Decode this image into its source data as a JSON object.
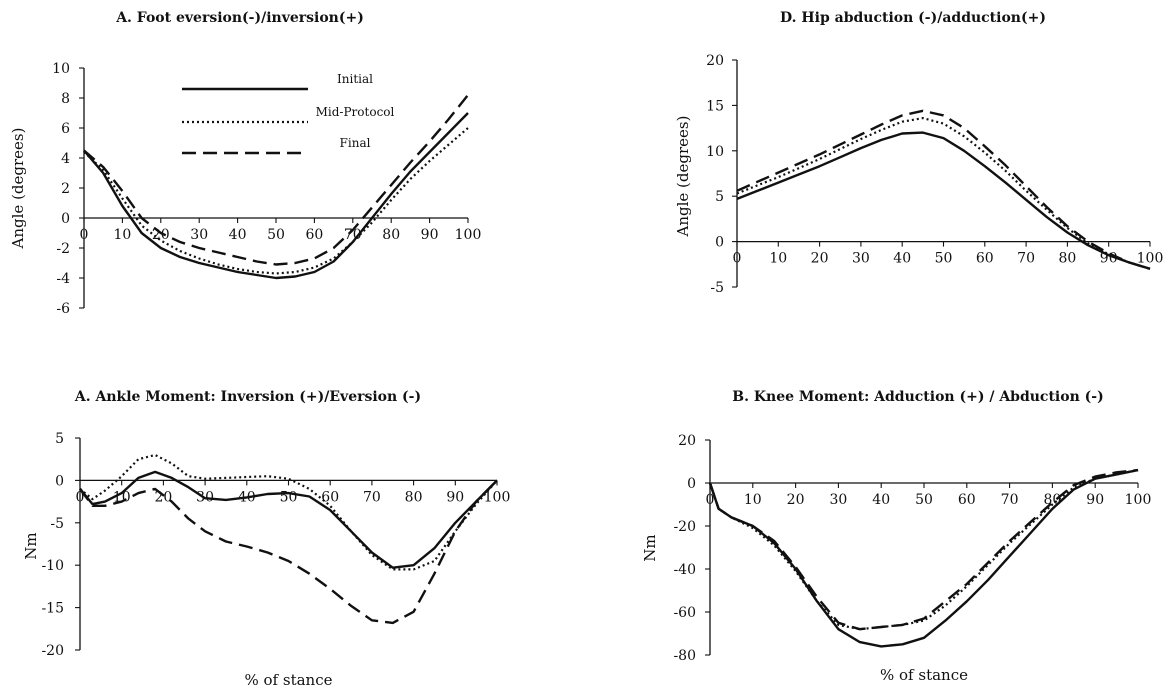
{
  "chart_data": [
    {
      "type": "line",
      "title": "A. Foot eversion(-)/inversion(+)",
      "xlabel": "",
      "ylabel": "Angle (degrees)",
      "xlim": [
        0,
        100
      ],
      "ylim": [
        -6,
        10
      ],
      "xticks": [
        0,
        10,
        20,
        30,
        40,
        50,
        60,
        70,
        80,
        90,
        100
      ],
      "yticks": [
        -6,
        -4,
        -2,
        0,
        2,
        4,
        6,
        8,
        10
      ],
      "legend": {
        "position": "top-center",
        "entries": [
          "Initial",
          "Mid-Protocol",
          "Final"
        ]
      },
      "series": [
        {
          "name": "Initial",
          "style": "solid",
          "x": [
            0,
            5,
            10,
            15,
            20,
            25,
            30,
            35,
            40,
            45,
            50,
            55,
            60,
            65,
            70,
            75,
            80,
            85,
            90,
            95,
            100
          ],
          "y": [
            4.5,
            3.0,
            0.8,
            -1.0,
            -2.0,
            -2.6,
            -3.0,
            -3.3,
            -3.6,
            -3.8,
            -4.0,
            -3.9,
            -3.6,
            -2.9,
            -1.6,
            0.0,
            1.6,
            3.1,
            4.4,
            5.7,
            7.0
          ]
        },
        {
          "name": "Mid-Protocol",
          "style": "dotted",
          "x": [
            0,
            5,
            10,
            15,
            20,
            25,
            30,
            35,
            40,
            45,
            50,
            55,
            60,
            65,
            70,
            75,
            80,
            85,
            90,
            95,
            100
          ],
          "y": [
            4.4,
            3.2,
            1.3,
            -0.5,
            -1.5,
            -2.2,
            -2.7,
            -3.1,
            -3.4,
            -3.6,
            -3.7,
            -3.6,
            -3.3,
            -2.7,
            -1.6,
            -0.3,
            1.2,
            2.6,
            3.8,
            4.9,
            6.0
          ]
        },
        {
          "name": "Final",
          "style": "dashed",
          "x": [
            0,
            5,
            10,
            15,
            20,
            25,
            30,
            35,
            40,
            45,
            50,
            55,
            60,
            65,
            70,
            75,
            80,
            85,
            90,
            95,
            100
          ],
          "y": [
            4.5,
            3.4,
            1.8,
            0.0,
            -1.0,
            -1.6,
            -2.0,
            -2.3,
            -2.6,
            -2.9,
            -3.1,
            -3.0,
            -2.7,
            -2.0,
            -0.8,
            0.7,
            2.2,
            3.7,
            5.1,
            6.6,
            8.2
          ]
        }
      ]
    },
    {
      "type": "line",
      "title": "D. Hip abduction (-)/adduction(+)",
      "xlabel": "",
      "ylabel": "Angle (degrees)",
      "xlim": [
        0,
        100
      ],
      "ylim": [
        -5,
        20
      ],
      "xticks": [
        0,
        10,
        20,
        30,
        40,
        50,
        60,
        70,
        80,
        90,
        100
      ],
      "yticks": [
        -5,
        0,
        5,
        10,
        15,
        20
      ],
      "series": [
        {
          "name": "Initial",
          "style": "solid",
          "x": [
            0,
            5,
            10,
            15,
            20,
            25,
            30,
            35,
            40,
            45,
            50,
            55,
            60,
            65,
            70,
            75,
            80,
            85,
            90,
            95,
            100
          ],
          "y": [
            4.7,
            5.6,
            6.5,
            7.4,
            8.3,
            9.3,
            10.3,
            11.2,
            11.9,
            12.0,
            11.4,
            10.0,
            8.3,
            6.5,
            4.6,
            2.7,
            1.0,
            -0.4,
            -1.5,
            -2.3,
            -3.0
          ]
        },
        {
          "name": "Mid-Protocol",
          "style": "dotted",
          "x": [
            0,
            5,
            10,
            15,
            20,
            25,
            30,
            35,
            40,
            45,
            50,
            55,
            60,
            65,
            70,
            75,
            80,
            85,
            90,
            95,
            100
          ],
          "y": [
            5.3,
            6.2,
            7.1,
            8.1,
            9.1,
            10.2,
            11.3,
            12.3,
            13.2,
            13.6,
            13.0,
            11.6,
            9.8,
            7.8,
            5.6,
            3.5,
            1.5,
            -0.2,
            -1.4,
            -2.3,
            -3.0
          ]
        },
        {
          "name": "Final",
          "style": "dashed",
          "x": [
            0,
            5,
            10,
            15,
            20,
            25,
            30,
            35,
            40,
            45,
            50,
            55,
            60,
            65,
            70,
            75,
            80,
            85,
            90,
            95,
            100
          ],
          "y": [
            5.6,
            6.6,
            7.6,
            8.6,
            9.6,
            10.7,
            11.8,
            12.9,
            13.9,
            14.4,
            13.9,
            12.5,
            10.5,
            8.4,
            6.1,
            3.8,
            1.7,
            0.0,
            -1.3,
            -2.3,
            -3.0
          ]
        }
      ]
    },
    {
      "type": "line",
      "title": "A. Ankle Moment: Inversion (+)/Eversion (-)",
      "xlabel": "% of stance",
      "ylabel": "Nm",
      "xlim": [
        0,
        100
      ],
      "ylim": [
        -20,
        5
      ],
      "xticks": [
        0,
        10,
        20,
        30,
        40,
        50,
        60,
        70,
        80,
        90,
        100
      ],
      "yticks": [
        -20,
        -15,
        -10,
        -5,
        0,
        5
      ],
      "series": [
        {
          "name": "Initial",
          "style": "solid",
          "x": [
            0,
            3,
            6,
            10,
            14,
            18,
            22,
            26,
            30,
            35,
            40,
            45,
            50,
            55,
            60,
            65,
            70,
            75,
            80,
            85,
            90,
            95,
            100
          ],
          "y": [
            -1.0,
            -2.8,
            -2.5,
            -1.5,
            0.3,
            1.0,
            0.3,
            -0.8,
            -2.1,
            -2.3,
            -2.0,
            -1.6,
            -1.5,
            -1.9,
            -3.5,
            -6.0,
            -8.5,
            -10.3,
            -10.0,
            -8.0,
            -5.0,
            -2.5,
            0.0
          ]
        },
        {
          "name": "Mid-Protocol",
          "style": "dotted",
          "x": [
            0,
            3,
            6,
            10,
            14,
            18,
            22,
            26,
            30,
            35,
            40,
            45,
            50,
            55,
            60,
            65,
            70,
            75,
            80,
            85,
            90,
            95,
            100
          ],
          "y": [
            -1.0,
            -2.2,
            -1.2,
            0.5,
            2.5,
            3.0,
            2.0,
            0.5,
            0.2,
            0.3,
            0.4,
            0.5,
            0.2,
            -1.0,
            -3.0,
            -6.0,
            -8.8,
            -10.5,
            -10.5,
            -9.5,
            -6.0,
            -2.8,
            0.0
          ]
        },
        {
          "name": "Final",
          "style": "dashed",
          "x": [
            0,
            3,
            6,
            10,
            14,
            18,
            22,
            26,
            30,
            35,
            40,
            45,
            50,
            55,
            60,
            65,
            70,
            75,
            80,
            85,
            90,
            95,
            100
          ],
          "y": [
            -1.0,
            -3.0,
            -3.0,
            -2.5,
            -1.5,
            -1.0,
            -2.5,
            -4.5,
            -6.0,
            -7.2,
            -7.8,
            -8.5,
            -9.5,
            -11.0,
            -12.8,
            -14.8,
            -16.5,
            -16.8,
            -15.5,
            -11.0,
            -6.0,
            -2.5,
            0.0
          ]
        }
      ]
    },
    {
      "type": "line",
      "title": "B. Knee Moment: Adduction (+) / Abduction (-)",
      "xlabel": "% of stance",
      "ylabel": "Nm",
      "xlim": [
        0,
        100
      ],
      "ylim": [
        -80,
        20
      ],
      "xticks": [
        0,
        10,
        20,
        30,
        40,
        50,
        60,
        70,
        80,
        90,
        100
      ],
      "yticks": [
        -80,
        -60,
        -40,
        -20,
        0,
        20
      ],
      "series": [
        {
          "name": "Initial",
          "style": "solid",
          "x": [
            0,
            2,
            5,
            10,
            15,
            20,
            25,
            30,
            35,
            40,
            45,
            50,
            55,
            60,
            65,
            70,
            75,
            80,
            85,
            90,
            95,
            100
          ],
          "y": [
            0,
            -12,
            -16,
            -20,
            -28,
            -40,
            -55,
            -68,
            -74,
            -76,
            -75,
            -72,
            -64,
            -55,
            -45,
            -34,
            -23,
            -12,
            -3,
            2,
            4,
            6
          ]
        },
        {
          "name": "Mid-Protocol",
          "style": "dotted",
          "x": [
            0,
            2,
            5,
            10,
            15,
            20,
            25,
            30,
            35,
            40,
            45,
            50,
            55,
            60,
            65,
            70,
            75,
            80,
            85,
            90,
            95,
            100
          ],
          "y": [
            0,
            -12,
            -16,
            -21,
            -29,
            -41,
            -55,
            -66,
            -68,
            -67,
            -66,
            -64,
            -57,
            -48,
            -38,
            -28,
            -19,
            -10,
            -2,
            2,
            4,
            6
          ]
        },
        {
          "name": "Final",
          "style": "dashed",
          "x": [
            0,
            2,
            5,
            10,
            15,
            20,
            25,
            30,
            35,
            40,
            45,
            50,
            55,
            60,
            65,
            70,
            75,
            80,
            85,
            90,
            95,
            100
          ],
          "y": [
            0,
            -12,
            -16,
            -20,
            -27,
            -39,
            -53,
            -65,
            -68,
            -67,
            -66,
            -63,
            -55,
            -47,
            -37,
            -27,
            -18,
            -9,
            -1,
            3,
            5,
            6
          ]
        }
      ]
    }
  ]
}
